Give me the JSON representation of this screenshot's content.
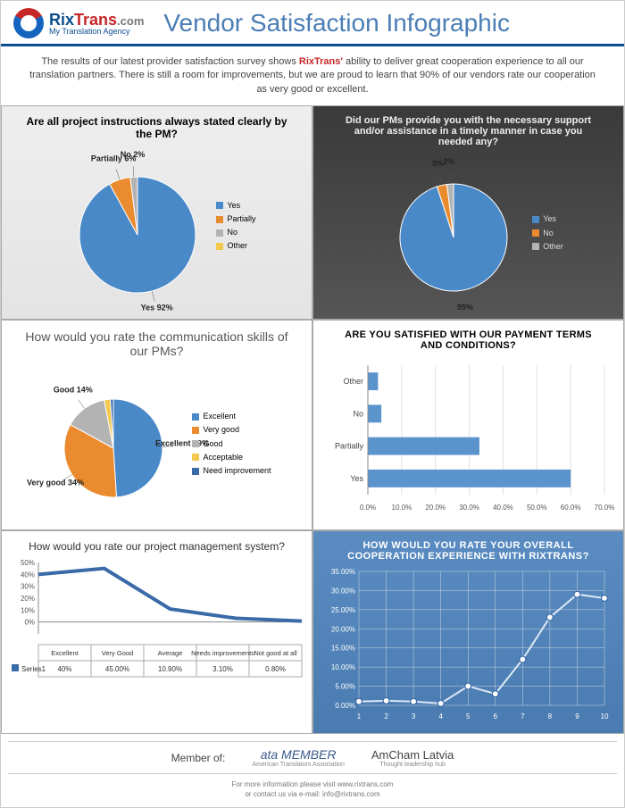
{
  "header": {
    "brand_rix": "Rix",
    "brand_trans": "Trans",
    "brand_com": ".com",
    "tagline": "My Translation Agency",
    "title": "Vendor Satisfaction Infographic"
  },
  "intro": {
    "pre": "The results of our latest provider satisfaction survey shows ",
    "highlight": "RixTrans'",
    "post": " ability to deliver great cooperation experience to all our translation partners. There is still a room for improvements, but we are proud to learn that 90% of our vendors rate our cooperation as very good or excellent."
  },
  "chart1": {
    "type": "pie",
    "title": "Are all project instructions always stated clearly by the PM?",
    "slices": [
      {
        "label": "Yes",
        "value": 92,
        "color": "#4a89c8",
        "text": "Yes 92%"
      },
      {
        "label": "Partially",
        "value": 6,
        "color": "#e98b2e",
        "text": "Partially 6%"
      },
      {
        "label": "No",
        "value": 2,
        "color": "#b3b3b3",
        "text": "No 2%"
      },
      {
        "label": "Other",
        "value": 0,
        "color": "#f2c94c",
        "text": ""
      }
    ],
    "legend": [
      "Yes",
      "Partially",
      "No",
      "Other"
    ],
    "legend_colors": [
      "#4a89c8",
      "#e98b2e",
      "#b3b3b3",
      "#f2c94c"
    ],
    "title_fontsize": 12,
    "bg": "gray"
  },
  "chart2": {
    "type": "pie",
    "title": "Did our PMs provide you with the necessary support and/or assistance in a timely manner in case you needed any?",
    "slices": [
      {
        "label": "Yes",
        "value": 95,
        "color": "#4a89c8",
        "text": "95%"
      },
      {
        "label": "No",
        "value": 3,
        "color": "#e98b2e",
        "text": "3%"
      },
      {
        "label": "Other",
        "value": 2,
        "color": "#b3b3b3",
        "text": "2%"
      }
    ],
    "legend": [
      "Yes",
      "No",
      "Other"
    ],
    "legend_colors": [
      "#4a89c8",
      "#e98b2e",
      "#b3b3b3"
    ],
    "title_color": "#eee",
    "bg": "dark"
  },
  "chart3": {
    "type": "pie",
    "title": "How would you rate the communication skills of our PMs?",
    "slices": [
      {
        "label": "Excellent",
        "value": 49,
        "color": "#4a89c8",
        "text": "Excellent 49%"
      },
      {
        "label": "Very good",
        "value": 34,
        "color": "#e98b2e",
        "text": "Very good 34%"
      },
      {
        "label": "Good",
        "value": 14,
        "color": "#b3b3b3",
        "text": "Good 14%"
      },
      {
        "label": "Acceptable",
        "value": 2,
        "color": "#f2c94c",
        "text": ""
      },
      {
        "label": "Need improvement",
        "value": 1,
        "color": "#3a6aa8",
        "text": ""
      }
    ],
    "legend": [
      "Excellent",
      "Very good",
      "Good",
      "Acceptable",
      "Need improvement"
    ],
    "legend_colors": [
      "#4a89c8",
      "#e98b2e",
      "#b3b3b3",
      "#f2c94c",
      "#3a6aa8"
    ],
    "bg": "light"
  },
  "chart4": {
    "type": "bar",
    "title": "ARE YOU SATISFIED WITH OUR PAYMENT TERMS AND CONDITIONS?",
    "categories": [
      "Other",
      "No",
      "Partially",
      "Yes"
    ],
    "values": [
      3,
      4,
      33,
      60
    ],
    "bar_color": "#5b93cc",
    "xlim": [
      0,
      70
    ],
    "xtick_step": 10,
    "xtick_fmt": ".0%",
    "grid_color": "#e0e0e0",
    "bg": "light"
  },
  "chart5": {
    "type": "line_with_table",
    "title": "How would you rate our project management system?",
    "categories": [
      "Excellent",
      "Very Good",
      "Average",
      "Needs improvements",
      "Not good at all"
    ],
    "values": [
      40,
      45,
      10.9,
      3.1,
      0.8
    ],
    "display_values": [
      "40%",
      "45.00%",
      "10.90%",
      "3.10%",
      "0.80%"
    ],
    "line_color": "#3a6aa8",
    "ylim": [
      -10,
      50
    ],
    "ytick_step": 10,
    "series_label": "Series1",
    "bg": "light"
  },
  "chart6": {
    "type": "line",
    "title": "HOW WOULD YOU RATE YOUR OVERALL COOPERATION EXPERIENCE WITH RIXTRANS?",
    "x": [
      1,
      2,
      3,
      4,
      5,
      6,
      7,
      8,
      9,
      10
    ],
    "y": [
      1,
      1.2,
      1,
      0.5,
      5,
      3,
      12,
      23,
      29,
      28
    ],
    "line_color": "#dbe8f5",
    "marker_color": "#ffffff",
    "marker_border": "#3a6aa8",
    "ylim": [
      0,
      35
    ],
    "ytick_step": 5,
    "ytick_fmt": ".00%",
    "grid_color": "#cdd9e5",
    "bg": "blue"
  },
  "footer": {
    "member_of": "Member of:",
    "m1": "ata MEMBER",
    "m1_sub": "American Translators Association",
    "m2_a": "Am",
    "m2_b": "Cham",
    "m2_c": " Latvia",
    "m2_sub": "Thought leadership hub",
    "line1": "For more information please visit www.rixtrans.com",
    "line2": "or contact us via e-mail: info@rixtrans.com"
  }
}
